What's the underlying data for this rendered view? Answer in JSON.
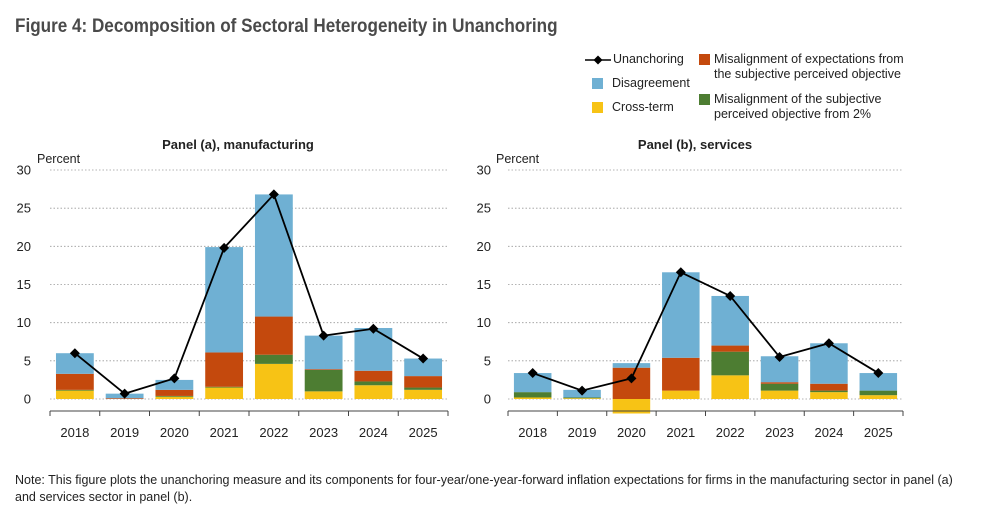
{
  "title": "Figure 4: Decomposition of Sectoral Heterogeneity in Unanchoring",
  "legend": {
    "unanchoring": "Unanchoring",
    "disagreement": "Disagreement",
    "cross_term": "Cross-term",
    "misalignment_expectations_l1": "Misalignment of expectations from",
    "misalignment_expectations_l2": "the subjective perceived objective",
    "misalignment_objective_l1": "Misalignment of the subjective",
    "misalignment_objective_l2": "perceived objective from 2%"
  },
  "colors": {
    "disagreement": "#6fb0d3",
    "misalignment_expectations": "#c4490d",
    "misalignment_objective": "#4d7d32",
    "cross_term": "#f7c315",
    "unanchoring": "#000000",
    "grid": "#9a9a9a"
  },
  "note": "Note: This figure plots the unanchoring measure and its components for four-year/one-year-forward inflation expectations for firms in the manufacturing sector in panel (a) and services sector in panel (b).",
  "chart_data": [
    {
      "type": "bar",
      "stacked": true,
      "title": "Panel (a), manufacturing",
      "ylabel": "Percent",
      "ylim": [
        0,
        30
      ],
      "yticks": [
        0,
        5,
        10,
        15,
        20,
        25,
        30
      ],
      "grid": true,
      "categories": [
        "2018",
        "2019",
        "2020",
        "2021",
        "2022",
        "2023",
        "2024",
        "2025"
      ],
      "series": [
        {
          "name": "Cross-term",
          "key": "cross_term",
          "values": [
            1.1,
            0.0,
            0.3,
            1.5,
            4.6,
            1.0,
            1.8,
            1.2
          ]
        },
        {
          "name": "Misalignment of the subjective perceived objective from 2%",
          "key": "misalignment_objective",
          "values": [
            0.1,
            0.0,
            0.1,
            0.1,
            1.2,
            2.8,
            0.5,
            0.3
          ]
        },
        {
          "name": "Misalignment of expectations from the subjective perceived objective",
          "key": "misalignment_expectations",
          "values": [
            2.1,
            0.1,
            0.8,
            4.5,
            5.0,
            0.1,
            1.4,
            1.5
          ]
        },
        {
          "name": "Disagreement",
          "key": "disagreement",
          "values": [
            2.7,
            0.6,
            1.3,
            13.8,
            16.0,
            4.4,
            5.6,
            2.3
          ]
        }
      ],
      "line": {
        "name": "Unanchoring",
        "values": [
          6.0,
          0.7,
          2.7,
          19.8,
          26.8,
          8.3,
          9.2,
          5.3
        ]
      }
    },
    {
      "type": "bar",
      "stacked": true,
      "title": "Panel (b), services",
      "ylabel": "Percent",
      "ylim": [
        0,
        30
      ],
      "yticks": [
        0,
        5,
        10,
        15,
        20,
        25,
        30
      ],
      "grid": true,
      "categories": [
        "2018",
        "2019",
        "2020",
        "2021",
        "2022",
        "2023",
        "2024",
        "2025"
      ],
      "series": [
        {
          "name": "Cross-term",
          "key": "cross_term",
          "values": [
            0.2,
            0.1,
            -1.9,
            1.1,
            3.1,
            1.1,
            0.9,
            0.5
          ]
        },
        {
          "name": "Misalignment of the subjective perceived objective from 2%",
          "key": "misalignment_objective",
          "values": [
            0.7,
            0.1,
            0.0,
            0.0,
            3.1,
            0.9,
            0.2,
            0.6
          ]
        },
        {
          "name": "Misalignment of expectations from the subjective perceived objective",
          "key": "misalignment_expectations",
          "values": [
            0.0,
            0.0,
            4.1,
            4.3,
            0.8,
            0.2,
            0.9,
            0.0
          ]
        },
        {
          "name": "Disagreement",
          "key": "disagreement",
          "values": [
            2.5,
            1.0,
            0.6,
            11.2,
            6.5,
            3.4,
            5.3,
            2.3
          ]
        }
      ],
      "line": {
        "name": "Unanchoring",
        "values": [
          3.4,
          1.1,
          2.7,
          16.6,
          13.5,
          5.5,
          7.3,
          3.4
        ]
      }
    }
  ]
}
